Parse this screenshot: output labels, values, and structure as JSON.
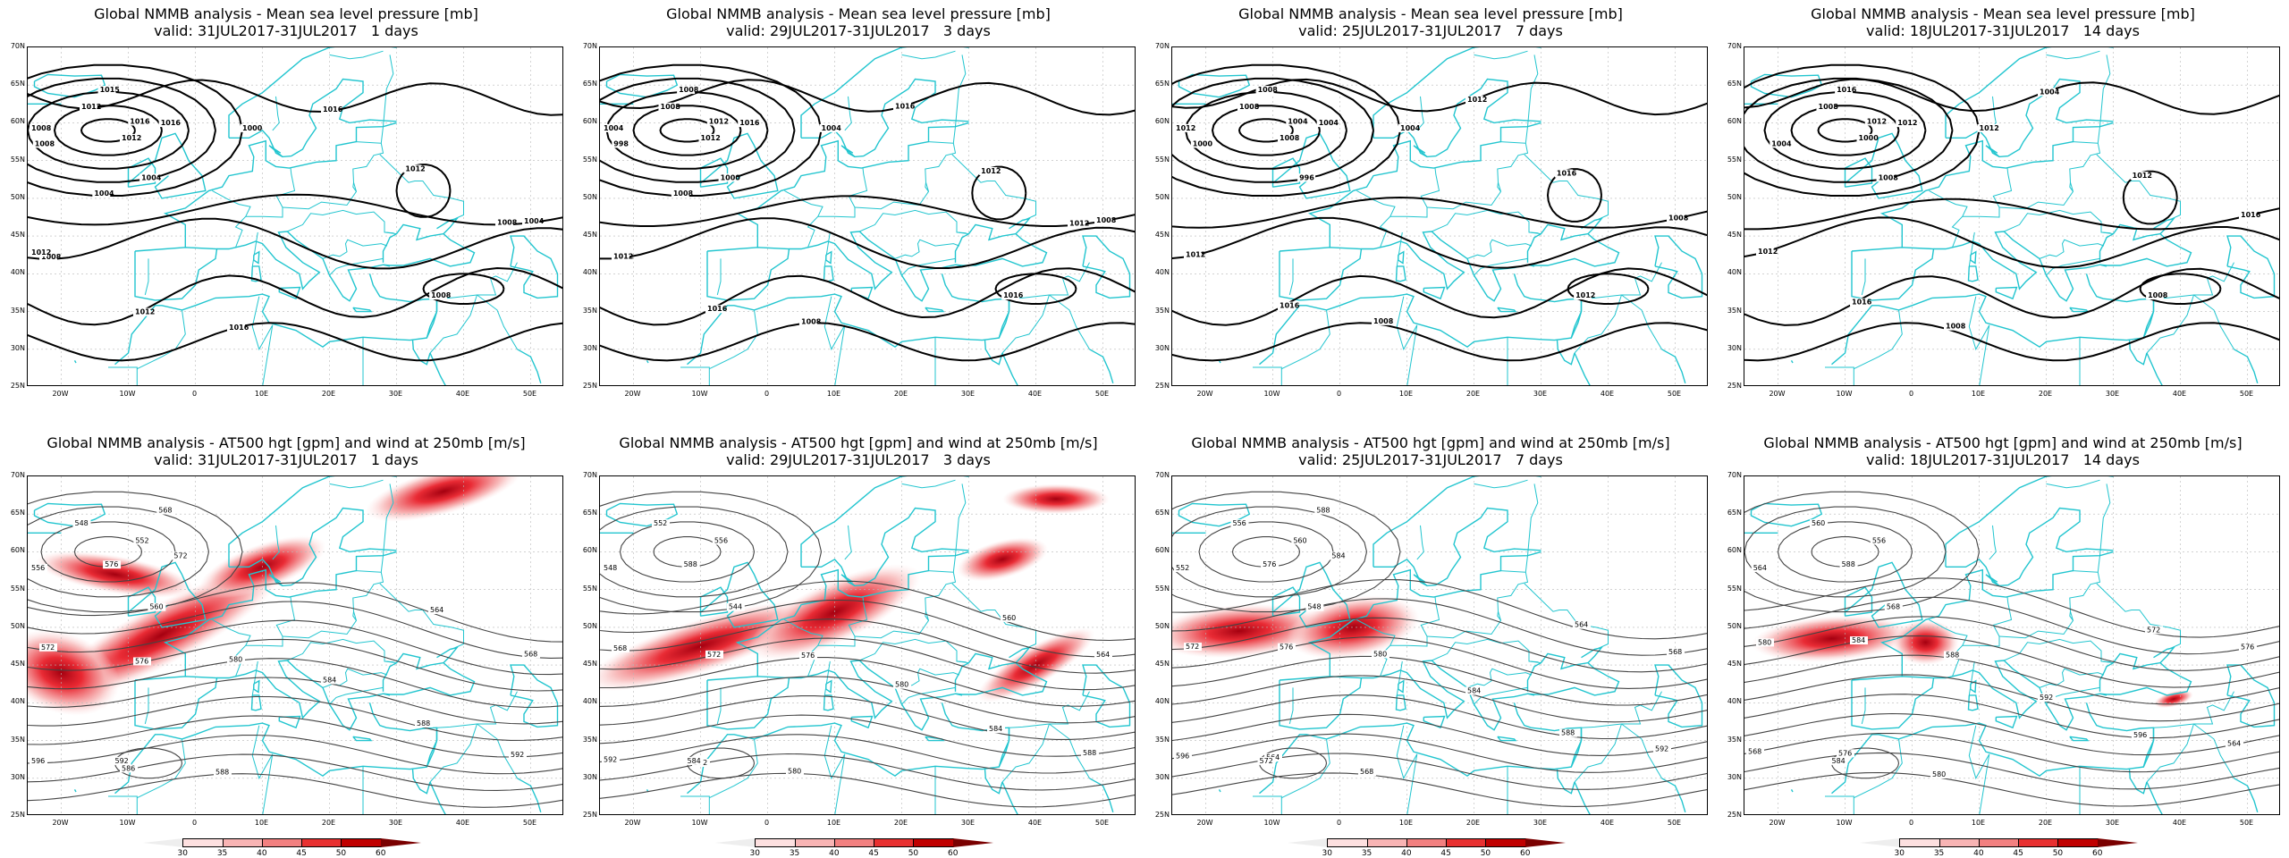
{
  "panels": [
    {
      "title1": "Global NMMB analysis - Mean sea level pressure [mb]",
      "title2": "valid: 31JUL2017-31JUL2017   1 days",
      "kind": "mslp",
      "contours": [
        "1016",
        "1012",
        "1008",
        "1004",
        "1000",
        "1004",
        "1008",
        "1012",
        "1016",
        "1016",
        "1012",
        "1008",
        "1012",
        "1016",
        "1015",
        "1008",
        "1004",
        "1008",
        "1012"
      ]
    },
    {
      "title1": "Global NMMB analysis - Mean sea level pressure [mb]",
      "title2": "valid: 29JUL2017-31JUL2017   3 days",
      "kind": "mslp",
      "contours": [
        "1012",
        "1008",
        "998",
        "1000",
        "1004",
        "1008",
        "1012",
        "1016",
        "1008",
        "1016",
        "1012",
        "1016",
        "1012",
        "1016",
        "1008",
        "1004",
        "1008",
        "1012"
      ]
    },
    {
      "title1": "Global NMMB analysis - Mean sea level pressure [mb]",
      "title2": "valid: 25JUL2017-31JUL2017   7 days",
      "kind": "mslp",
      "contours": [
        "1004",
        "1008",
        "1000",
        "996",
        "1004",
        "1008",
        "1012",
        "1016",
        "1008",
        "1012",
        "1016",
        "1012",
        "1008",
        "1004",
        "1008",
        "1012"
      ]
    },
    {
      "title1": "Global NMMB analysis - Mean sea level pressure [mb]",
      "title2": "valid: 18JUL2017-31JUL2017   14 days",
      "kind": "mslp",
      "contours": [
        "1012",
        "1008",
        "1004",
        "1008",
        "1012",
        "1016",
        "1012",
        "1016",
        "1008",
        "1004",
        "1012",
        "1008",
        "1000",
        "1012",
        "1016"
      ]
    },
    {
      "title1": "Global NMMB analysis - AT500 hgt [gpm] and wind at 250mb [m/s]",
      "title2": "valid: 31JUL2017-31JUL2017   1 days",
      "kind": "z500",
      "contours": [
        "552",
        "548",
        "556",
        "560",
        "564",
        "568",
        "572",
        "576",
        "580",
        "584",
        "588",
        "592",
        "596",
        "586",
        "588",
        "592",
        "576",
        "572",
        "568"
      ]
    },
    {
      "title1": "Global NMMB analysis - AT500 hgt [gpm] and wind at 250mb [m/s]",
      "title2": "valid: 29JUL2017-31JUL2017   3 days",
      "kind": "z500",
      "contours": [
        "556",
        "552",
        "548",
        "544",
        "560",
        "564",
        "568",
        "572",
        "576",
        "580",
        "584",
        "588",
        "592",
        "572",
        "580",
        "584",
        "588"
      ]
    },
    {
      "title1": "Global NMMB analysis - AT500 hgt [gpm] and wind at 250mb [m/s]",
      "title2": "valid: 25JUL2017-31JUL2017   7 days",
      "kind": "z500",
      "contours": [
        "560",
        "556",
        "552",
        "548",
        "564",
        "568",
        "572",
        "576",
        "580",
        "584",
        "588",
        "592",
        "596",
        "564",
        "568",
        "572",
        "576",
        "584",
        "588"
      ]
    },
    {
      "title1": "Global NMMB analysis - AT500 hgt [gpm] and wind at 250mb [m/s]",
      "title2": "valid: 18JUL2017-31JUL2017   14 days",
      "kind": "z500",
      "contours": [
        "556",
        "560",
        "564",
        "568",
        "572",
        "576",
        "580",
        "584",
        "588",
        "592",
        "596",
        "564",
        "568",
        "576",
        "580",
        "584",
        "588"
      ]
    }
  ],
  "lat_labels": [
    "70N",
    "65N",
    "60N",
    "55N",
    "50N",
    "45N",
    "40N",
    "35N",
    "30N",
    "25N"
  ],
  "lon_labels": [
    "20W",
    "10W",
    "0",
    "10E",
    "20E",
    "30E",
    "40E",
    "50E"
  ],
  "colorbar_labels": [
    "30",
    "35",
    "40",
    "45",
    "50",
    "60"
  ],
  "colors": {
    "coast": "#22c5cf",
    "contour_mslp": "#000000",
    "contour_z500": "#444444",
    "jet": "#e8202a",
    "jet_light": "#f7b6b6"
  }
}
